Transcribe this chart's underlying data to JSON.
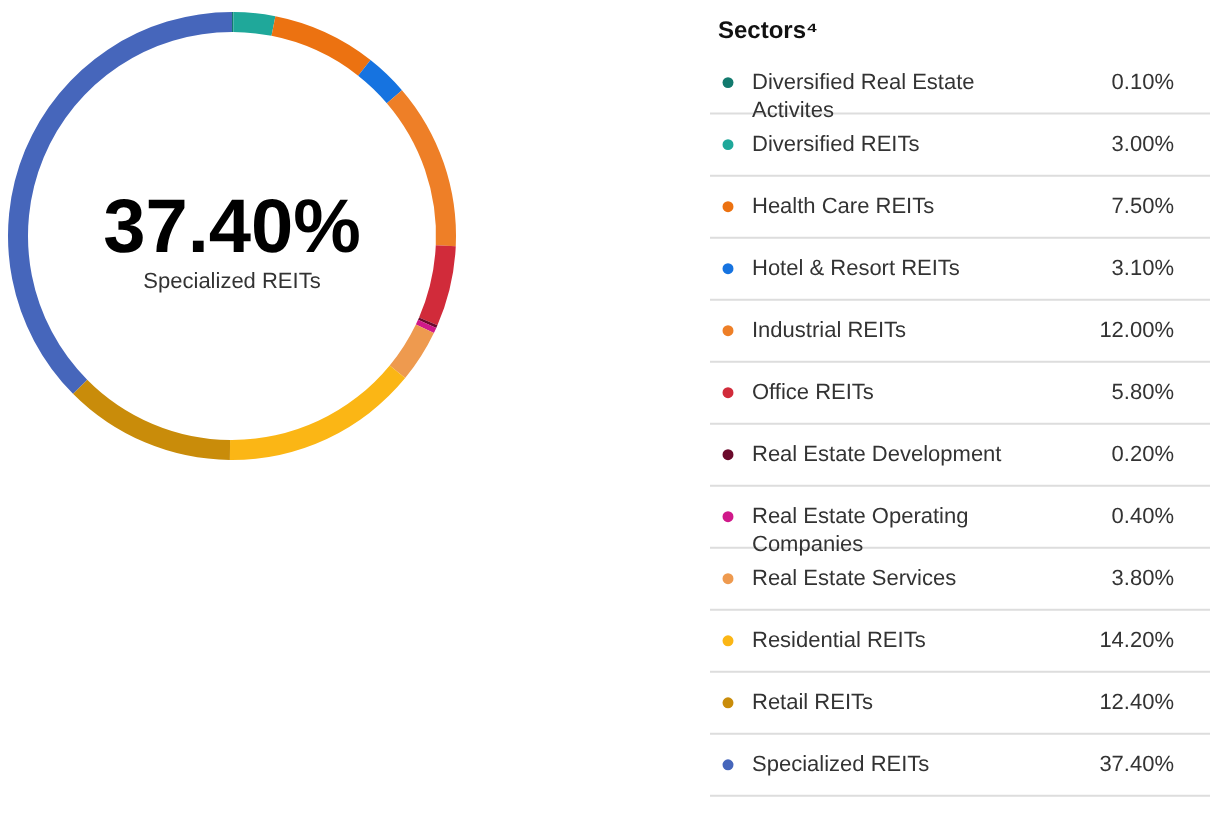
{
  "chart_data": {
    "type": "donut",
    "legend_title": "Sectors⁴",
    "legend": "right",
    "categories": [
      "Diversified Real Estate Activites",
      "Diversified REITs",
      "Health Care REITs",
      "Hotel & Resort REITs",
      "Industrial REITs",
      "Office REITs",
      "Real Estate Development",
      "Real Estate Operating Companies",
      "Real Estate Services",
      "Residential REITs",
      "Retail REITs",
      "Specialized REITs"
    ],
    "values": [
      0.1,
      3.0,
      7.5,
      3.1,
      12.0,
      5.8,
      0.2,
      0.4,
      3.8,
      14.2,
      12.4,
      37.4
    ],
    "value_labels": [
      "0.10%",
      "3.00%",
      "7.50%",
      "3.10%",
      "12.00%",
      "5.80%",
      "0.20%",
      "0.40%",
      "3.80%",
      "14.20%",
      "12.40%",
      "37.40%"
    ],
    "colors": [
      "#127a6e",
      "#1fa89a",
      "#ec7211",
      "#1673e0",
      "#ee7f27",
      "#d12b3a",
      "#6b0a2c",
      "#d0198a",
      "#ee9a4f",
      "#fbb615",
      "#c98c0a",
      "#4666bb"
    ],
    "annotations": [
      "37.40%",
      "Specialized REITs"
    ]
  }
}
